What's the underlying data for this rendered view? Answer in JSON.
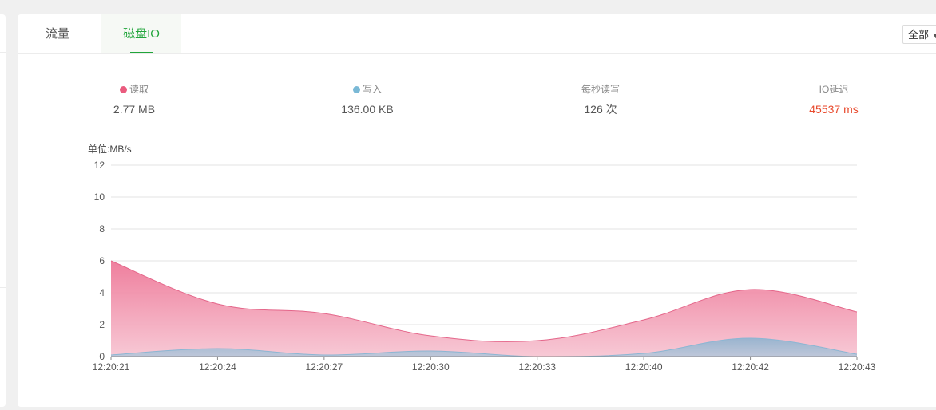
{
  "tabs": [
    {
      "label": "流量",
      "active": false
    },
    {
      "label": "磁盘IO",
      "active": true
    }
  ],
  "filter": {
    "selected": "全部"
  },
  "stats": [
    {
      "label": "读取",
      "value": "2.77 MB",
      "dot_color": "#ea5b7e"
    },
    {
      "label": "写入",
      "value": "136.00 KB",
      "dot_color": "#7ab9d6"
    },
    {
      "label": "每秒读写",
      "value": "126 次"
    },
    {
      "label": "IO延迟",
      "value": "45537 ms",
      "value_color": "#e8492c"
    }
  ],
  "colors": {
    "accent": "#20a53a",
    "read": "#ea5b7e",
    "write": "#7ab9d6"
  },
  "chart_data": {
    "type": "area",
    "ylabel": "单位:MB/s",
    "ylim": [
      0,
      12
    ],
    "yticks": [
      0,
      2,
      4,
      6,
      8,
      10,
      12
    ],
    "categories": [
      "12:20:21",
      "12:20:24",
      "12:20:27",
      "12:20:30",
      "12:20:33",
      "12:20:40",
      "12:20:42",
      "12:20:43"
    ],
    "grid": true,
    "legend": "top",
    "series": [
      {
        "name": "读取",
        "color": "#ea5b7e",
        "values": [
          6.0,
          3.3,
          2.7,
          1.3,
          1.0,
          2.3,
          4.2,
          2.8
        ]
      },
      {
        "name": "写入",
        "color": "#7ab9d6",
        "values": [
          0.1,
          0.5,
          0.1,
          0.35,
          0.0,
          0.2,
          1.15,
          0.15
        ]
      }
    ]
  }
}
